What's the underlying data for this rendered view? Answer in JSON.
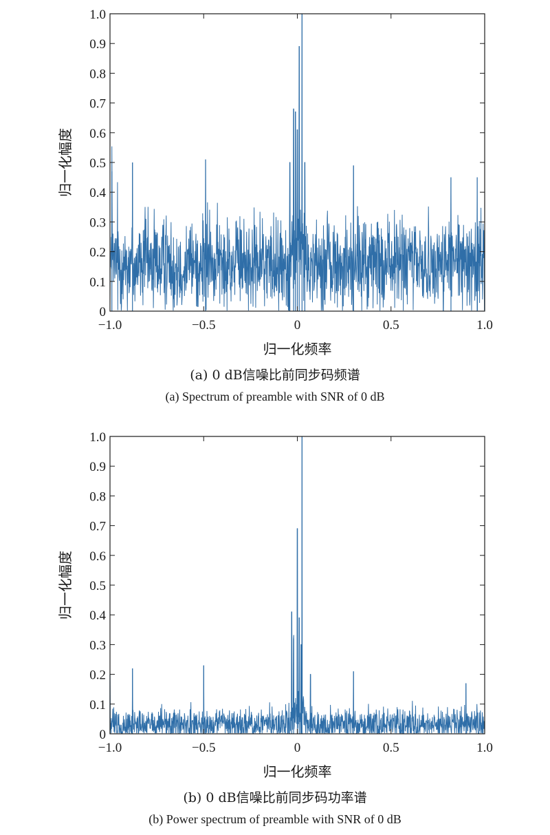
{
  "chart_data": [
    {
      "type": "line",
      "xlabel": "归一化频率",
      "ylabel": "归一化幅度",
      "xlim": [
        -1.0,
        1.0
      ],
      "ylim": [
        0,
        1.0
      ],
      "xticks": [
        "−1.0",
        "−0.5",
        "0",
        "0.5",
        "1.0"
      ],
      "xtick_values": [
        -1.0,
        -0.5,
        0,
        0.5,
        1.0
      ],
      "yticks": [
        "0",
        "0.1",
        "0.2",
        "0.3",
        "0.4",
        "0.5",
        "0.6",
        "0.7",
        "0.8",
        "0.9",
        "1.0"
      ],
      "ytick_values": [
        0,
        0.1,
        0.2,
        0.3,
        0.4,
        0.5,
        0.6,
        0.7,
        0.8,
        0.9,
        1.0
      ],
      "grid": false,
      "color": "#2f6ea8",
      "noise_floor": 0.16,
      "noise_spread": 0.14,
      "peaks": [
        {
          "x": 0.025,
          "y": 1.0
        },
        {
          "x": 0.01,
          "y": 0.89
        },
        {
          "x": -0.02,
          "y": 0.68
        },
        {
          "x": -0.01,
          "y": 0.67
        },
        {
          "x": 0.0,
          "y": 0.61
        },
        {
          "x": -0.04,
          "y": 0.5
        },
        {
          "x": 0.04,
          "y": 0.5
        },
        {
          "x": -0.88,
          "y": 0.5
        },
        {
          "x": -0.49,
          "y": 0.51
        },
        {
          "x": 0.3,
          "y": 0.49
        },
        {
          "x": -0.99,
          "y": 0.47
        },
        {
          "x": 0.82,
          "y": 0.45
        },
        {
          "x": 0.96,
          "y": 0.45
        }
      ],
      "caption_cn": "(a) 0 dB信噪比前同步码频谱",
      "caption_en": "(a) Spectrum of preamble with  SNR of 0 dB"
    },
    {
      "type": "line",
      "xlabel": "归一化频率",
      "ylabel": "归一化幅度",
      "xlim": [
        -1.0,
        1.0
      ],
      "ylim": [
        0,
        1.0
      ],
      "xticks": [
        "−1.0",
        "−0.5",
        "0",
        "0.5",
        "1.0"
      ],
      "xtick_values": [
        -1.0,
        -0.5,
        0,
        0.5,
        1.0
      ],
      "yticks": [
        "0",
        "0.1",
        "0.2",
        "0.3",
        "0.4",
        "0.5",
        "0.6",
        "0.7",
        "0.8",
        "0.9",
        "1.0"
      ],
      "ytick_values": [
        0,
        0.1,
        0.2,
        0.3,
        0.4,
        0.5,
        0.6,
        0.7,
        0.8,
        0.9,
        1.0
      ],
      "grid": false,
      "color": "#2f6ea8",
      "noise_floor": 0.03,
      "noise_spread": 0.05,
      "peaks": [
        {
          "x": 0.025,
          "y": 1.0
        },
        {
          "x": 0.0,
          "y": 0.69
        },
        {
          "x": -0.03,
          "y": 0.41
        },
        {
          "x": 0.01,
          "y": 0.39
        },
        {
          "x": 0.02,
          "y": 0.3
        },
        {
          "x": -0.02,
          "y": 0.32
        },
        {
          "x": -0.88,
          "y": 0.22
        },
        {
          "x": -0.5,
          "y": 0.23
        },
        {
          "x": 0.3,
          "y": 0.21
        },
        {
          "x": -1.0,
          "y": 0.2
        },
        {
          "x": 0.9,
          "y": 0.17
        },
        {
          "x": 0.07,
          "y": 0.2
        }
      ],
      "caption_cn": "(b) 0 dB信噪比前同步码功率谱",
      "caption_en": "(b) Power spectrum of preamble with  SNR of 0 dB"
    }
  ]
}
